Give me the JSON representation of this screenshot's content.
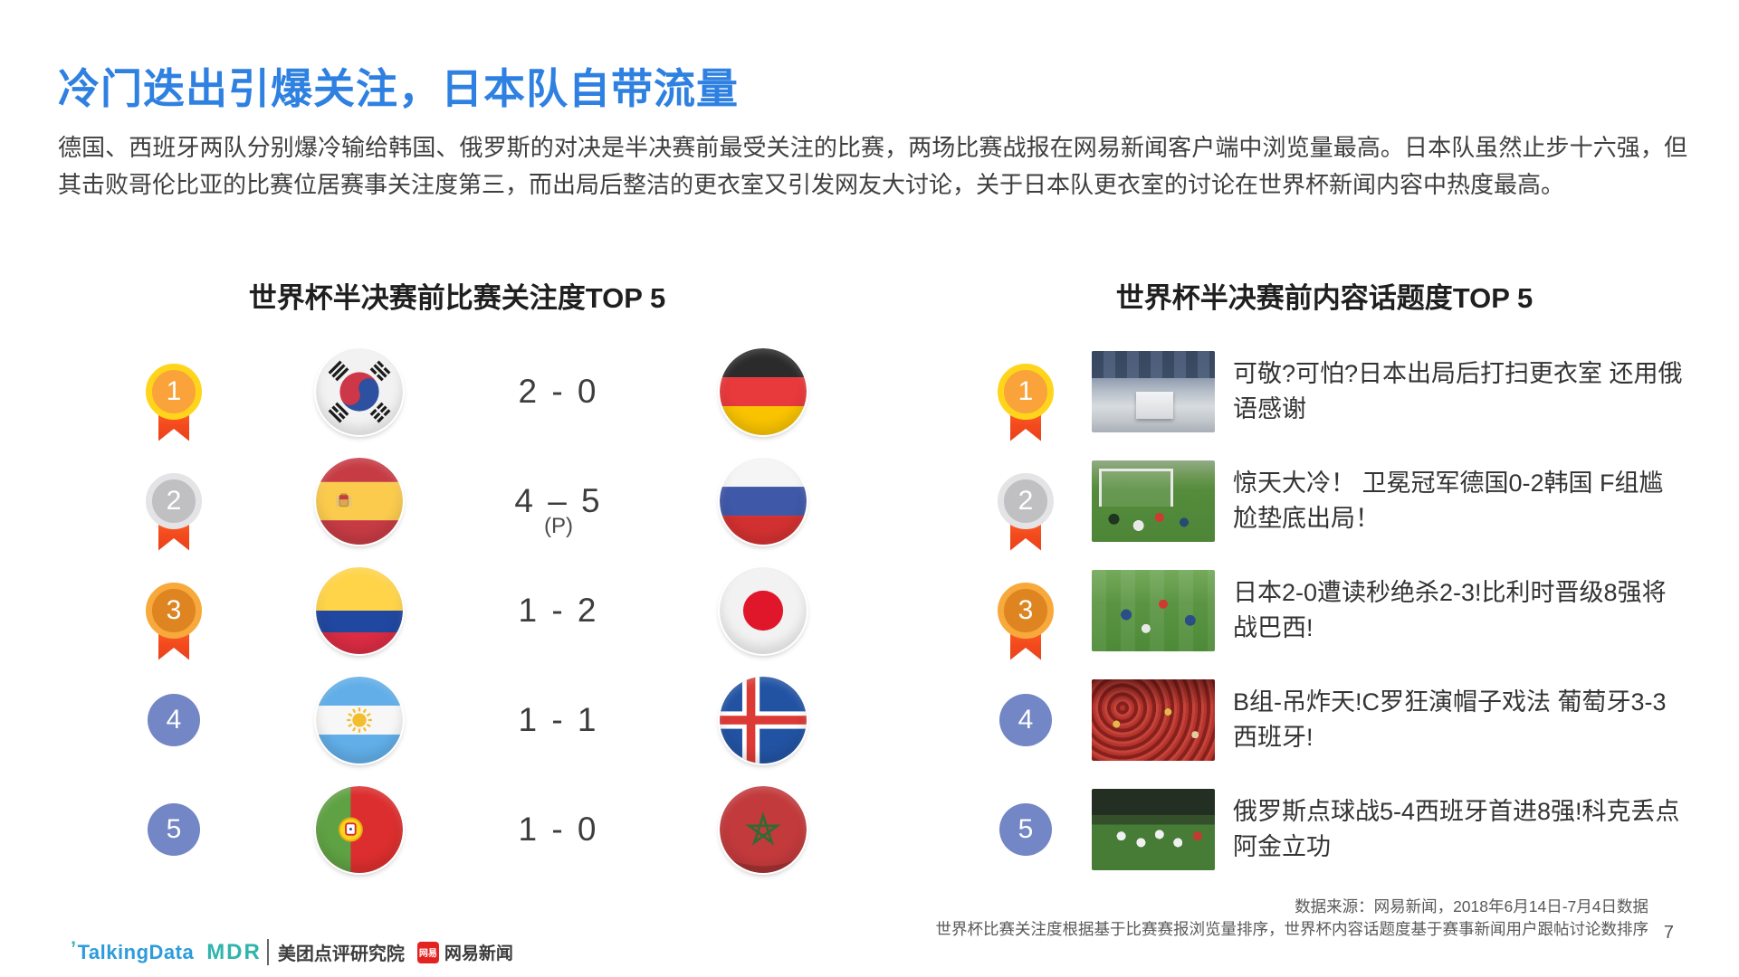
{
  "slide": {
    "title": "冷门迭出引爆关注，日本队自带流量",
    "paragraph": "德国、西班牙两队分别爆冷输给韩国、俄罗斯的对决是半决赛前最受关注的比赛，两场比赛战报在网易新闻客户端中浏览量最高。日本队虽然止步十六强，但其击败哥伦比亚的比赛位居赛事关注度第三，而出局后整洁的更衣室又引发网友大讨论，关于日本队更衣室的讨论在世界杯新闻内容中热度最高。",
    "page_number": "7"
  },
  "colors": {
    "title_blue": "#2E80E1",
    "gold_ring": "#FFD51C",
    "silver_ring": "#E4E4E6",
    "bronze_ring": "#F8A93C",
    "rank_blue": "#7386C5",
    "ribbon_orange": "#F3491D"
  },
  "match_panel": {
    "heading": "世界杯半决赛前比赛关注度TOP 5",
    "rows": [
      {
        "rank": "1",
        "medal": "gold",
        "home_flag": "south-korea",
        "score": "2 - 0",
        "score_note": "",
        "away_flag": "germany"
      },
      {
        "rank": "2",
        "medal": "silver",
        "home_flag": "spain",
        "score": "4 – 5",
        "score_note": "(P)",
        "away_flag": "russia"
      },
      {
        "rank": "3",
        "medal": "bronze",
        "home_flag": "colombia",
        "score": "1 - 2",
        "score_note": "",
        "away_flag": "japan"
      },
      {
        "rank": "4",
        "medal": "plain",
        "home_flag": "argentina",
        "score": "1 - 1",
        "score_note": "",
        "away_flag": "iceland"
      },
      {
        "rank": "5",
        "medal": "plain",
        "home_flag": "portugal",
        "score": "1 - 0",
        "score_note": "",
        "away_flag": "morocco"
      }
    ]
  },
  "topic_panel": {
    "heading": "世界杯半决赛前内容话题度TOP 5",
    "rows": [
      {
        "rank": "1",
        "medal": "gold",
        "photo": "japan-locker-room",
        "title": "可敬?可怕?日本出局后打扫更衣室 还用俄语感谢"
      },
      {
        "rank": "2",
        "medal": "silver",
        "photo": "germany-korea-goal",
        "title": "惊天大冷！ 卫冕冠军德国0-2韩国 F组尴尬垫底出局！"
      },
      {
        "rank": "3",
        "medal": "bronze",
        "photo": "japan-belgium-pitch",
        "title": "日本2-0遭读秒绝杀2-3!比利时晋级8强将战巴西!"
      },
      {
        "rank": "4",
        "medal": "plain",
        "photo": "portugal-spain-fans",
        "title": "B组-吊炸天!C罗狂演帽子戏法 葡萄牙3-3西班牙!"
      },
      {
        "rank": "5",
        "medal": "plain",
        "photo": "russia-spain-players",
        "title": "俄罗斯点球战5-4西班牙首进8强!科克丢点阿金立功"
      }
    ]
  },
  "footer": {
    "source_line1": "数据来源：网易新闻，2018年6月14日-7月4日数据",
    "source_line2": "世界杯比赛关注度根据基于比赛赛报浏览量排序，世界杯内容话题度基于赛事新闻用户跟帖讨论数排序",
    "logos": {
      "talkingdata": "TalkingData",
      "mdr": "MDR",
      "meituan_research": "美团点评研究院",
      "netease_badge": "网易",
      "netease_news": "网易新闻"
    }
  }
}
